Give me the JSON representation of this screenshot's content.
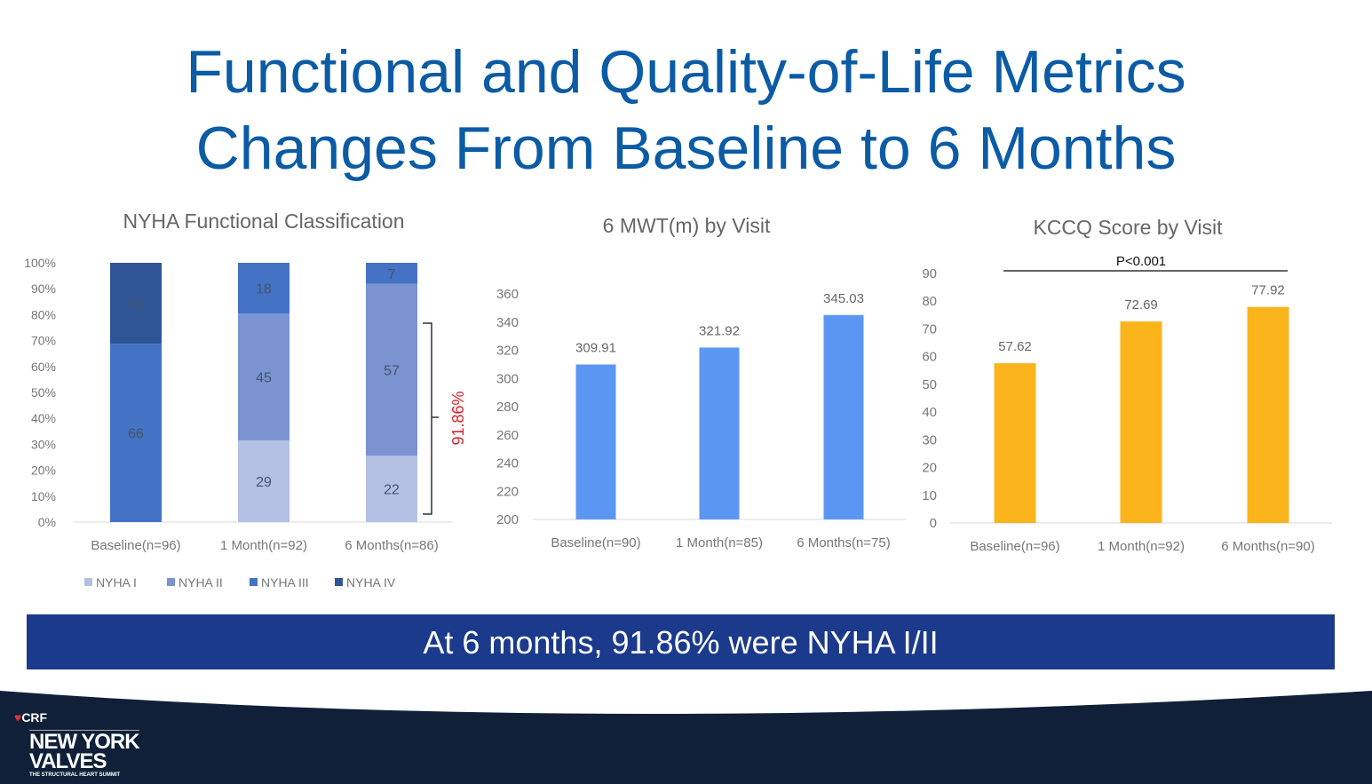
{
  "title_line1": "Functional and Quality-of-Life Metrics",
  "title_line2": "Changes From Baseline to 6 Months",
  "banner": "At 6 months, 91.86% were NYHA I/II",
  "logo": {
    "crf": "CRF",
    "name1": "NEW YORK",
    "name2": "VALVES",
    "tagline": "THE STRUCTURAL HEART SUMMIT"
  },
  "chart_data": [
    {
      "type": "bar",
      "stacked": true,
      "percent": true,
      "title": "NYHA Functional Classification",
      "categories": [
        "Baseline(n=96)",
        "1 Month(n=92)",
        "6 Months(n=86)"
      ],
      "series": [
        {
          "name": "NYHA I",
          "values": [
            0,
            29,
            22
          ],
          "color": "#b4c0e4"
        },
        {
          "name": "NYHA II",
          "values": [
            0,
            45,
            57
          ],
          "color": "#7b93d0"
        },
        {
          "name": "NYHA III",
          "values": [
            66,
            18,
            7
          ],
          "color": "#4472c4"
        },
        {
          "name": "NYHA IV",
          "values": [
            30,
            0,
            0
          ],
          "color": "#2f5597"
        }
      ],
      "yticks": [
        "0%",
        "10%",
        "20%",
        "30%",
        "40%",
        "50%",
        "60%",
        "70%",
        "80%",
        "90%",
        "100%"
      ],
      "ylim": [
        0,
        100
      ],
      "legend": "bottom",
      "annotation": "91.86%",
      "annotation_color": "#d9232d"
    },
    {
      "type": "bar",
      "title": "6 MWT(m) by Visit",
      "categories": [
        "Baseline(n=90)",
        "1 Month(n=85)",
        "6 Months(n=75)"
      ],
      "values": [
        309.91,
        321.92,
        345.03
      ],
      "labels": [
        "309.91",
        "321.92",
        "345.03"
      ],
      "color": "#5b97f2",
      "ylim": [
        200,
        360
      ],
      "yticks": [
        "200",
        "220",
        "240",
        "260",
        "280",
        "300",
        "320",
        "340",
        "360"
      ]
    },
    {
      "type": "bar",
      "title": "KCCQ Score by Visit",
      "categories": [
        "Baseline(n=96)",
        "1 Month(n=92)",
        "6 Months(n=90)"
      ],
      "values": [
        57.62,
        72.69,
        77.92
      ],
      "labels": [
        "57.62",
        "72.69",
        "77.92"
      ],
      "color": "#fbb41c",
      "ylim": [
        0,
        90
      ],
      "yticks": [
        "0",
        "10",
        "20",
        "30",
        "40",
        "50",
        "60",
        "70",
        "80",
        "90"
      ],
      "annotation": "P<0.001"
    }
  ]
}
